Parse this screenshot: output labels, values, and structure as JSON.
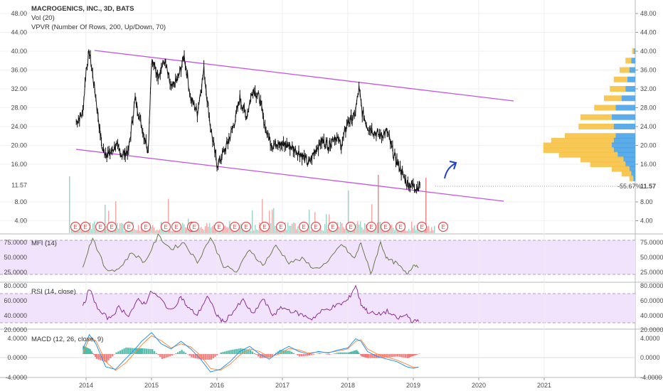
{
  "header": {
    "symbol_line": "MACROGENICS, INC., 3D, BATS",
    "vol_label": "Vol (20)",
    "vpvr_label": "VPVR (Number Of Rows, 200, Up/Down, 70)"
  },
  "price_scale": {
    "ticks": [
      "48.00",
      "44.00",
      "40.00",
      "36.00",
      "32.00",
      "28.00",
      "24.00",
      "20.00",
      "16.00",
      "11.57",
      "8.00",
      "4.00"
    ],
    "last_price_label": "11.57",
    "change_label": "-55.67%"
  },
  "mfi": {
    "label": "MFI (14)",
    "ticks": [
      "75.0000",
      "50.0000",
      "25.0000"
    ]
  },
  "rsi": {
    "label": "RSI (14, close)",
    "ticks": [
      "80.0000",
      "60.0000",
      "40.0000",
      "20.0000"
    ]
  },
  "macd": {
    "label": "MACD (12, 26, close, 9)",
    "ticks": [
      "4.0000",
      "0.0000",
      "-4.0000"
    ]
  },
  "time_axis": {
    "ticks": [
      "2014",
      "2015",
      "2016",
      "2017",
      "2018",
      "2019",
      "2020",
      "2021"
    ]
  },
  "earnings_marker_label": "E",
  "earnings_count": 24,
  "colors": {
    "price_line": "#111111",
    "channel": "#c353e6",
    "mfi_line": "#6b7a4a",
    "rsi_line": "#8e2d9a",
    "macd_line": "#2196f3",
    "signal_line": "#ff8a3d",
    "vpvr_up": "#f7c244",
    "vpvr_down": "#4aa3e8",
    "arrow": "#1e3fd0",
    "earnings": "#e05050",
    "band_fill": "#f1e3fb"
  },
  "chart_data": [
    {
      "type": "line",
      "name": "price",
      "title": "MACROGENICS, INC., 3D, BATS",
      "x": [
        2013.85,
        2013.95,
        2014.0,
        2014.05,
        2014.1,
        2014.15,
        2014.25,
        2014.35,
        2014.45,
        2014.55,
        2014.65,
        2014.75,
        2014.85,
        2014.95,
        2015.0,
        2015.1,
        2015.2,
        2015.3,
        2015.4,
        2015.5,
        2015.6,
        2015.7,
        2015.8,
        2015.9,
        2016.0,
        2016.05,
        2016.15,
        2016.25,
        2016.35,
        2016.45,
        2016.55,
        2016.65,
        2016.75,
        2016.85,
        2016.95,
        2017.0,
        2017.1,
        2017.2,
        2017.3,
        2017.4,
        2017.5,
        2017.6,
        2017.7,
        2017.8,
        2017.9,
        2018.0,
        2018.1,
        2018.17,
        2018.22,
        2018.3,
        2018.4,
        2018.5,
        2018.6,
        2018.7,
        2018.8,
        2018.9,
        2019.0,
        2019.05,
        2019.1
      ],
      "values": [
        25,
        27,
        36,
        40,
        35,
        30,
        19,
        18,
        20,
        18,
        19,
        30,
        24,
        19,
        38,
        35,
        38,
        32,
        34,
        39,
        30,
        27,
        36,
        24,
        16,
        17,
        20,
        24,
        30,
        26,
        32,
        30,
        23,
        20,
        21,
        20,
        20,
        19,
        18,
        16,
        19,
        21,
        20,
        22,
        20,
        25,
        26,
        32,
        27,
        24,
        23,
        22,
        23,
        18,
        15,
        12,
        11.5,
        11.0,
        11.57
      ]
    },
    {
      "type": "line",
      "name": "MFI (14)",
      "ylim": [
        12,
        82
      ],
      "x": [
        2013.95,
        2014.1,
        2014.3,
        2014.5,
        2014.7,
        2014.9,
        2015.1,
        2015.3,
        2015.5,
        2015.7,
        2015.9,
        2016.1,
        2016.3,
        2016.5,
        2016.7,
        2016.9,
        2017.1,
        2017.3,
        2017.5,
        2017.7,
        2017.9,
        2018.1,
        2018.2,
        2018.35,
        2018.5,
        2018.6,
        2018.75,
        2018.9,
        2019.0,
        2019.1
      ],
      "values": [
        35,
        78,
        28,
        30,
        55,
        40,
        80,
        60,
        70,
        40,
        78,
        35,
        25,
        60,
        35,
        65,
        40,
        45,
        30,
        40,
        68,
        45,
        70,
        22,
        70,
        45,
        38,
        22,
        36,
        35
      ]
    },
    {
      "type": "line",
      "name": "RSI (14, close)",
      "ylim": [
        22,
        83
      ],
      "x": [
        2013.95,
        2014.05,
        2014.2,
        2014.35,
        2014.5,
        2014.65,
        2014.8,
        2014.9,
        2015.0,
        2015.15,
        2015.3,
        2015.45,
        2015.55,
        2015.7,
        2015.85,
        2016.0,
        2016.1,
        2016.25,
        2016.4,
        2016.55,
        2016.7,
        2016.85,
        2017.0,
        2017.15,
        2017.3,
        2017.45,
        2017.6,
        2017.75,
        2017.9,
        2018.0,
        2018.12,
        2018.2,
        2018.3,
        2018.45,
        2018.6,
        2018.75,
        2018.9,
        2019.0,
        2019.1
      ],
      "values": [
        50,
        75,
        45,
        35,
        50,
        40,
        60,
        55,
        72,
        60,
        45,
        65,
        50,
        40,
        65,
        40,
        30,
        45,
        60,
        40,
        62,
        40,
        50,
        45,
        40,
        35,
        45,
        50,
        55,
        60,
        80,
        55,
        45,
        40,
        45,
        35,
        40,
        30,
        35
      ]
    },
    {
      "type": "line",
      "name": "MACD (12, 26, close, 9)",
      "ylim": [
        -4.6,
        4.6
      ],
      "x": [
        2013.95,
        2014.05,
        2014.15,
        2014.3,
        2014.45,
        2014.6,
        2014.75,
        2014.85,
        2015.0,
        2015.15,
        2015.3,
        2015.45,
        2015.6,
        2015.75,
        2015.9,
        2016.05,
        2016.2,
        2016.35,
        2016.5,
        2016.65,
        2016.8,
        2016.95,
        2017.1,
        2017.25,
        2017.4,
        2017.55,
        2017.7,
        2017.85,
        2018.0,
        2018.12,
        2018.2,
        2018.3,
        2018.45,
        2018.6,
        2018.75,
        2018.9,
        2019.0,
        2019.1
      ],
      "series": [
        {
          "name": "MACD",
          "values": [
            1,
            3.8,
            2,
            -2.5,
            -3,
            -1,
            1,
            2.5,
            4.2,
            2,
            1,
            2.5,
            1,
            -1,
            -3.5,
            -3,
            -1.5,
            0.5,
            1.5,
            0,
            -1,
            0.5,
            1.5,
            0.5,
            0,
            0.5,
            0.2,
            0.8,
            1.2,
            3,
            2.5,
            0.5,
            -0.5,
            -1,
            -1.5,
            -2.5,
            -2.8,
            -2.5
          ]
        },
        {
          "name": "Signal",
          "values": [
            0,
            3.2,
            2.6,
            -1.5,
            -3.2,
            -1.8,
            0.3,
            1.8,
            3.6,
            2.6,
            1.2,
            2,
            1.4,
            -0.3,
            -2.8,
            -3.2,
            -2,
            -0.2,
            1,
            0.5,
            -0.6,
            0,
            1.1,
            0.8,
            0.2,
            0.4,
            0.3,
            0.6,
            1,
            2.5,
            2.8,
            1,
            0,
            -0.6,
            -1.2,
            -2,
            -2.6,
            -2.6
          ]
        }
      ]
    },
    {
      "type": "bar",
      "name": "VPVR (Number Of Rows, 200, Up/Down, 70)",
      "categories": [
        40,
        38,
        36,
        34,
        32,
        30,
        28,
        26,
        24,
        22,
        21,
        20,
        19,
        18,
        17,
        16,
        15,
        14,
        13
      ],
      "series": [
        {
          "name": "Up",
          "values": [
            5,
            15,
            25,
            35,
            40,
            45,
            55,
            80,
            90,
            130,
            160,
            175,
            180,
            150,
            110,
            90,
            45,
            25,
            10
          ]
        },
        {
          "name": "Down",
          "values": [
            3,
            10,
            15,
            20,
            25,
            35,
            50,
            60,
            55,
            50,
            55,
            60,
            55,
            45,
            30,
            25,
            15,
            10,
            5
          ]
        }
      ]
    }
  ]
}
